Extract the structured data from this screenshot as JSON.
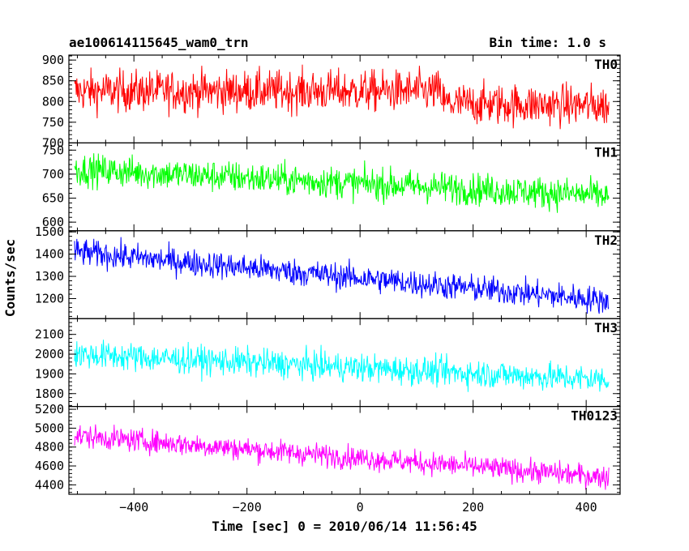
{
  "header": {
    "title": "ae100614115645_wam0_trn",
    "bin_time": "Bin time: 1.0 s"
  },
  "axes": {
    "ylabel": "Counts/sec",
    "xlabel": "Time [sec] 0 = 2010/06/14 11:56:45"
  },
  "chart_data": {
    "type": "line",
    "x_range": [
      -515,
      460
    ],
    "x_ticks": [
      -400,
      -200,
      0,
      200,
      400
    ],
    "x_tick_labels": [
      "−400",
      "−200",
      "0",
      "200",
      "400"
    ],
    "data_x_range": [
      -505,
      440
    ],
    "panels": [
      {
        "name": "TH0",
        "color": "#ff0000",
        "ylim": [
          700,
          912
        ],
        "ticks": [
          700,
          750,
          800,
          850,
          900
        ],
        "trend": [
          {
            "x": -505,
            "y": 825
          },
          {
            "x": 140,
            "y": 825
          },
          {
            "x": 150,
            "y": 795
          },
          {
            "x": 440,
            "y": 790
          }
        ],
        "noise": 45
      },
      {
        "name": "TH1",
        "color": "#00ff00",
        "ylim": [
          582,
          765
        ],
        "ticks": [
          600,
          650,
          700,
          750
        ],
        "trend": [
          {
            "x": -505,
            "y": 710
          },
          {
            "x": 440,
            "y": 655
          }
        ],
        "noise": 30
      },
      {
        "name": "TH2",
        "color": "#0000ff",
        "ylim": [
          1110,
          1505
        ],
        "ticks": [
          1200,
          1300,
          1400,
          1500
        ],
        "trend": [
          {
            "x": -505,
            "y": 1410
          },
          {
            "x": 440,
            "y": 1190
          }
        ],
        "noise": 55
      },
      {
        "name": "TH3",
        "color": "#00ffff",
        "ylim": [
          1735,
          2180
        ],
        "ticks": [
          1800,
          1900,
          2000,
          2100
        ],
        "trend": [
          {
            "x": -505,
            "y": 2000
          },
          {
            "x": 440,
            "y": 1870
          }
        ],
        "noise": 65
      },
      {
        "name": "TH0123",
        "color": "#ff00ff",
        "ylim": [
          4300,
          5230
        ],
        "ticks": [
          4400,
          4600,
          4800,
          5000,
          5200
        ],
        "trend": [
          {
            "x": -505,
            "y": 4920
          },
          {
            "x": 440,
            "y": 4480
          }
        ],
        "noise": 110
      }
    ]
  }
}
